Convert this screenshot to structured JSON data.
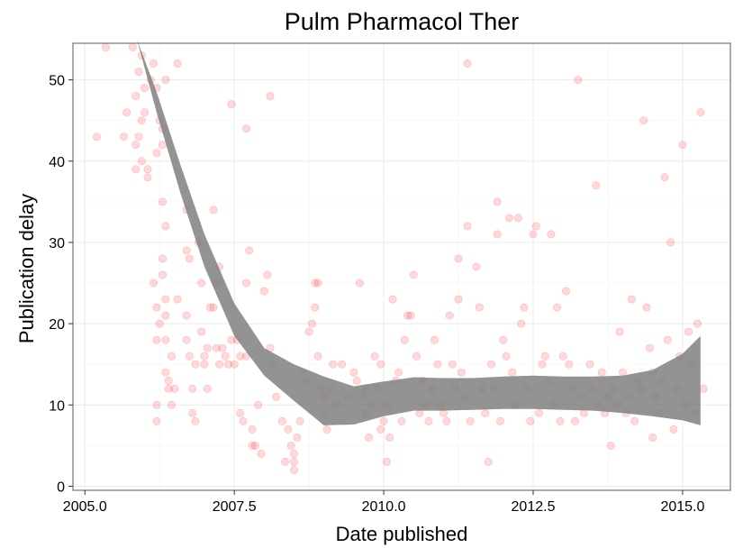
{
  "chart_data": {
    "type": "scatter",
    "title": "Pulm Pharmacol Ther",
    "xlabel": "Date published",
    "ylabel": "Publication delay",
    "xlim": [
      2004.8,
      2015.8
    ],
    "ylim": [
      -0.5,
      54.5
    ],
    "x_ticks": [
      2005.0,
      2007.5,
      2010.0,
      2012.5,
      2015.0
    ],
    "x_tick_labels": [
      "2005.0",
      "2007.5",
      "2010.0",
      "2012.5",
      "2015.0"
    ],
    "y_ticks": [
      0,
      10,
      20,
      30,
      40,
      50
    ],
    "y_tick_labels": [
      "0",
      "10",
      "20",
      "30",
      "40",
      "50"
    ],
    "grid": true,
    "point_color": "#ff0000",
    "point_opacity": 0.15,
    "band_color": "#808080",
    "smooth": {
      "x": [
        2005.87,
        2006.2,
        2006.6,
        2007.0,
        2007.5,
        2008.0,
        2008.5,
        2009.0,
        2009.5,
        2010.0,
        2010.5,
        2011.0,
        2011.5,
        2012.0,
        2012.5,
        2013.0,
        2013.5,
        2014.0,
        2014.5,
        2015.0,
        2015.3
      ],
      "upper": [
        55.0,
        48.5,
        39.5,
        31.0,
        22.5,
        17.0,
        15.0,
        13.5,
        12.3,
        12.9,
        13.4,
        13.3,
        13.3,
        13.5,
        13.6,
        13.5,
        13.5,
        13.6,
        14.3,
        16.3,
        18.5
      ],
      "lower": [
        55.0,
        46.0,
        36.0,
        27.0,
        18.5,
        13.6,
        10.5,
        7.5,
        7.6,
        8.6,
        9.3,
        9.3,
        9.4,
        9.5,
        9.5,
        9.4,
        9.3,
        9.0,
        8.6,
        8.1,
        7.5
      ]
    },
    "points": [
      [
        2005.35,
        54
      ],
      [
        2005.2,
        43
      ],
      [
        2005.65,
        43
      ],
      [
        2005.7,
        46
      ],
      [
        2005.85,
        42
      ],
      [
        2005.9,
        43
      ],
      [
        2005.8,
        54
      ],
      [
        2005.85,
        48
      ],
      [
        2005.9,
        51
      ],
      [
        2005.95,
        53
      ],
      [
        2006.0,
        49
      ],
      [
        2006.0,
        46
      ],
      [
        2005.95,
        45
      ],
      [
        2005.85,
        39
      ],
      [
        2005.95,
        40
      ],
      [
        2006.05,
        39
      ],
      [
        2006.05,
        38
      ],
      [
        2006.1,
        50
      ],
      [
        2006.15,
        52
      ],
      [
        2006.2,
        49
      ],
      [
        2006.25,
        45
      ],
      [
        2006.3,
        44
      ],
      [
        2006.35,
        50
      ],
      [
        2006.3,
        42
      ],
      [
        2006.2,
        41
      ],
      [
        2006.55,
        52
      ],
      [
        2006.15,
        25
      ],
      [
        2006.2,
        22
      ],
      [
        2006.25,
        20
      ],
      [
        2006.2,
        18
      ],
      [
        2006.3,
        35
      ],
      [
        2006.35,
        32
      ],
      [
        2006.3,
        28
      ],
      [
        2006.3,
        26
      ],
      [
        2006.35,
        23
      ],
      [
        2006.35,
        21
      ],
      [
        2006.35,
        18
      ],
      [
        2006.35,
        14
      ],
      [
        2006.4,
        13
      ],
      [
        2006.4,
        12
      ],
      [
        2006.45,
        16
      ],
      [
        2006.45,
        10
      ],
      [
        2006.5,
        12
      ],
      [
        2006.55,
        23
      ],
      [
        2006.2,
        8
      ],
      [
        2006.2,
        10
      ],
      [
        2006.7,
        34
      ],
      [
        2006.75,
        28
      ],
      [
        2006.7,
        29
      ],
      [
        2006.75,
        16
      ],
      [
        2006.7,
        18
      ],
      [
        2006.7,
        21
      ],
      [
        2006.8,
        9
      ],
      [
        2006.8,
        12
      ],
      [
        2006.85,
        15
      ],
      [
        2006.85,
        8
      ],
      [
        2006.9,
        30
      ],
      [
        2006.95,
        25
      ],
      [
        2006.95,
        19
      ],
      [
        2007.0,
        16
      ],
      [
        2007.0,
        15
      ],
      [
        2007.05,
        17
      ],
      [
        2007.05,
        12
      ],
      [
        2007.1,
        22
      ],
      [
        2007.15,
        22
      ],
      [
        2007.15,
        34
      ],
      [
        2007.2,
        25
      ],
      [
        2007.2,
        17
      ],
      [
        2007.25,
        27
      ],
      [
        2007.25,
        15
      ],
      [
        2007.3,
        17
      ],
      [
        2007.35,
        16
      ],
      [
        2007.4,
        15
      ],
      [
        2007.45,
        18
      ],
      [
        2007.5,
        15
      ],
      [
        2007.55,
        18
      ],
      [
        2007.6,
        16
      ],
      [
        2007.6,
        9
      ],
      [
        2007.65,
        8
      ],
      [
        2007.45,
        47
      ],
      [
        2007.7,
        44
      ],
      [
        2007.75,
        29
      ],
      [
        2007.7,
        25
      ],
      [
        2007.7,
        16
      ],
      [
        2007.8,
        7
      ],
      [
        2007.8,
        5
      ],
      [
        2007.85,
        5
      ],
      [
        2007.9,
        10
      ],
      [
        2007.95,
        4
      ],
      [
        2008.0,
        24
      ],
      [
        2008.05,
        26
      ],
      [
        2008.1,
        48
      ],
      [
        2008.1,
        17
      ],
      [
        2008.15,
        15
      ],
      [
        2008.2,
        11
      ],
      [
        2008.3,
        8
      ],
      [
        2008.35,
        3
      ],
      [
        2008.4,
        7
      ],
      [
        2008.45,
        5
      ],
      [
        2008.5,
        4
      ],
      [
        2008.5,
        3
      ],
      [
        2008.5,
        2
      ],
      [
        2008.55,
        6
      ],
      [
        2008.6,
        8
      ],
      [
        2008.65,
        14
      ],
      [
        2008.7,
        13
      ],
      [
        2008.75,
        19
      ],
      [
        2008.8,
        20
      ],
      [
        2008.85,
        22
      ],
      [
        2008.85,
        25
      ],
      [
        2008.9,
        25
      ],
      [
        2008.9,
        16
      ],
      [
        2008.95,
        12
      ],
      [
        2009.0,
        11
      ],
      [
        2009.0,
        9
      ],
      [
        2009.05,
        7
      ],
      [
        2009.1,
        12
      ],
      [
        2009.15,
        15
      ],
      [
        2009.2,
        10
      ],
      [
        2009.3,
        15
      ],
      [
        2009.4,
        11
      ],
      [
        2009.5,
        14
      ],
      [
        2009.55,
        13
      ],
      [
        2009.6,
        25
      ],
      [
        2009.65,
        11
      ],
      [
        2009.7,
        12
      ],
      [
        2009.7,
        9
      ],
      [
        2009.75,
        6
      ],
      [
        2009.8,
        10
      ],
      [
        2009.85,
        16
      ],
      [
        2009.9,
        12
      ],
      [
        2009.95,
        15
      ],
      [
        2009.95,
        7
      ],
      [
        2010.0,
        8
      ],
      [
        2010.05,
        10
      ],
      [
        2010.05,
        3
      ],
      [
        2010.1,
        6
      ],
      [
        2010.15,
        23
      ],
      [
        2010.2,
        13
      ],
      [
        2010.25,
        14
      ],
      [
        2010.3,
        8
      ],
      [
        2010.35,
        18
      ],
      [
        2010.4,
        21
      ],
      [
        2010.45,
        21
      ],
      [
        2010.5,
        26
      ],
      [
        2010.55,
        16
      ],
      [
        2010.6,
        9
      ],
      [
        2010.65,
        13
      ],
      [
        2010.7,
        10
      ],
      [
        2010.75,
        8
      ],
      [
        2010.8,
        12
      ],
      [
        2010.85,
        18
      ],
      [
        2010.9,
        15
      ],
      [
        2010.95,
        10
      ],
      [
        2011.0,
        9
      ],
      [
        2011.05,
        8
      ],
      [
        2011.1,
        21
      ],
      [
        2011.15,
        15
      ],
      [
        2011.2,
        12
      ],
      [
        2011.25,
        23
      ],
      [
        2011.25,
        28
      ],
      [
        2011.3,
        14
      ],
      [
        2011.35,
        11
      ],
      [
        2011.4,
        52
      ],
      [
        2011.4,
        32
      ],
      [
        2011.45,
        8
      ],
      [
        2011.55,
        27
      ],
      [
        2011.6,
        22
      ],
      [
        2011.65,
        12
      ],
      [
        2011.7,
        9
      ],
      [
        2011.75,
        3
      ],
      [
        2011.8,
        15
      ],
      [
        2011.85,
        12
      ],
      [
        2011.9,
        31
      ],
      [
        2011.9,
        35
      ],
      [
        2011.95,
        8
      ],
      [
        2012.0,
        18
      ],
      [
        2012.05,
        16
      ],
      [
        2012.1,
        33
      ],
      [
        2012.15,
        14
      ],
      [
        2012.2,
        10
      ],
      [
        2012.25,
        33
      ],
      [
        2012.3,
        20
      ],
      [
        2012.35,
        22
      ],
      [
        2012.4,
        12
      ],
      [
        2012.45,
        8
      ],
      [
        2012.5,
        31
      ],
      [
        2012.55,
        32
      ],
      [
        2012.6,
        9
      ],
      [
        2012.65,
        15
      ],
      [
        2012.7,
        16
      ],
      [
        2012.75,
        13
      ],
      [
        2012.8,
        31
      ],
      [
        2012.85,
        10
      ],
      [
        2012.9,
        22
      ],
      [
        2012.95,
        8
      ],
      [
        2013.0,
        16
      ],
      [
        2013.05,
        24
      ],
      [
        2013.1,
        15
      ],
      [
        2013.15,
        12
      ],
      [
        2013.2,
        8
      ],
      [
        2013.25,
        50
      ],
      [
        2013.3,
        11
      ],
      [
        2013.35,
        9
      ],
      [
        2013.45,
        15
      ],
      [
        2013.5,
        12
      ],
      [
        2013.55,
        37
      ],
      [
        2013.6,
        10
      ],
      [
        2013.65,
        14
      ],
      [
        2013.7,
        9
      ],
      [
        2013.75,
        11
      ],
      [
        2013.8,
        5
      ],
      [
        2013.85,
        12
      ],
      [
        2013.9,
        10
      ],
      [
        2013.95,
        19
      ],
      [
        2014.0,
        14
      ],
      [
        2014.05,
        9
      ],
      [
        2014.1,
        11
      ],
      [
        2014.15,
        23
      ],
      [
        2014.2,
        8
      ],
      [
        2014.25,
        13
      ],
      [
        2014.3,
        12
      ],
      [
        2014.35,
        45
      ],
      [
        2014.4,
        22
      ],
      [
        2014.45,
        17
      ],
      [
        2014.5,
        14
      ],
      [
        2014.5,
        6
      ],
      [
        2014.55,
        11
      ],
      [
        2014.6,
        9
      ],
      [
        2014.65,
        13
      ],
      [
        2014.7,
        38
      ],
      [
        2014.75,
        18
      ],
      [
        2014.8,
        30
      ],
      [
        2014.85,
        7
      ],
      [
        2014.9,
        12
      ],
      [
        2014.95,
        16
      ],
      [
        2015.0,
        42
      ],
      [
        2015.05,
        10
      ],
      [
        2015.1,
        19
      ],
      [
        2015.15,
        15
      ],
      [
        2015.2,
        9
      ],
      [
        2015.25,
        20
      ],
      [
        2015.3,
        46
      ],
      [
        2015.35,
        12
      ]
    ]
  }
}
